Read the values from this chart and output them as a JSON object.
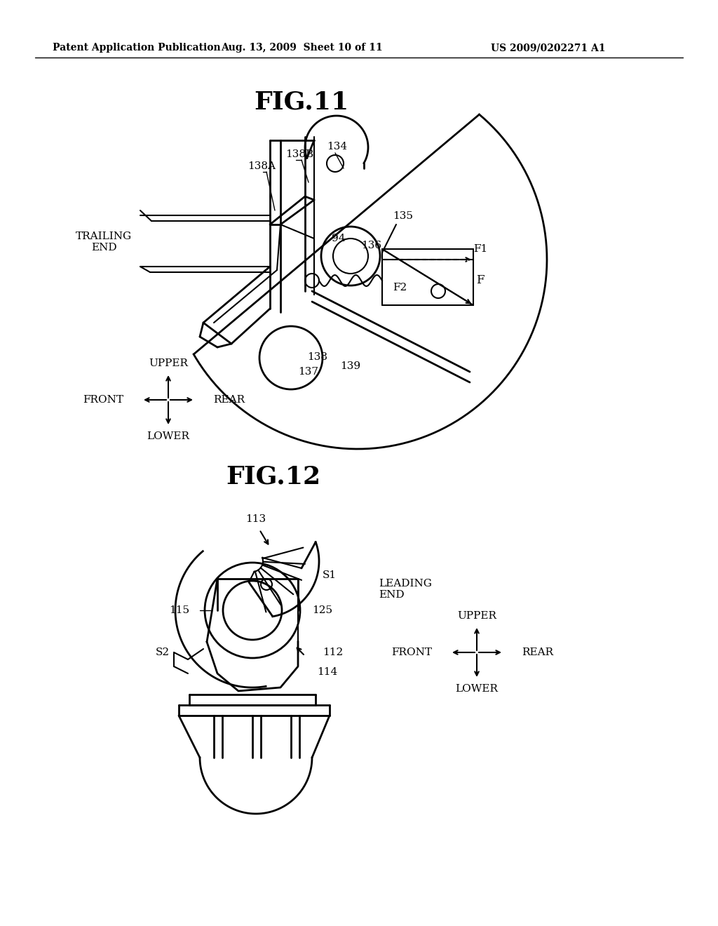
{
  "bg_color": "#ffffff",
  "line_color": "#000000",
  "header_text": "Patent Application Publication",
  "header_date": "Aug. 13, 2009  Sheet 10 of 11",
  "header_patent": "US 2009/0202271 A1"
}
